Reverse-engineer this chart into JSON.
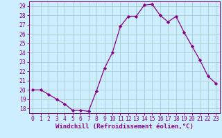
{
  "x": [
    0,
    1,
    2,
    3,
    4,
    5,
    6,
    7,
    8,
    9,
    10,
    11,
    12,
    13,
    14,
    15,
    16,
    17,
    18,
    19,
    20,
    21,
    22,
    23
  ],
  "y": [
    20,
    20,
    19.5,
    19,
    18.5,
    17.8,
    17.8,
    17.7,
    19.9,
    22.3,
    24.0,
    26.8,
    27.9,
    27.9,
    29.1,
    29.2,
    28.0,
    27.3,
    27.9,
    26.2,
    24.7,
    23.2,
    21.5,
    20.7
  ],
  "line_color": "#880088",
  "marker": "D",
  "marker_size": 2.2,
  "bg_color": "#cceeff",
  "grid_color": "#aacccc",
  "xlabel": "Windchill (Refroidissement éolien,°C)",
  "xlabel_fontsize": 6.5,
  "xlim": [
    -0.5,
    23.5
  ],
  "ylim": [
    17.5,
    29.5
  ],
  "yticks": [
    18,
    19,
    20,
    21,
    22,
    23,
    24,
    25,
    26,
    27,
    28,
    29
  ],
  "xticks": [
    0,
    1,
    2,
    3,
    4,
    5,
    6,
    7,
    8,
    9,
    10,
    11,
    12,
    13,
    14,
    15,
    16,
    17,
    18,
    19,
    20,
    21,
    22,
    23
  ],
  "tick_fontsize": 5.8,
  "spine_color": "#880088",
  "linewidth": 0.9
}
